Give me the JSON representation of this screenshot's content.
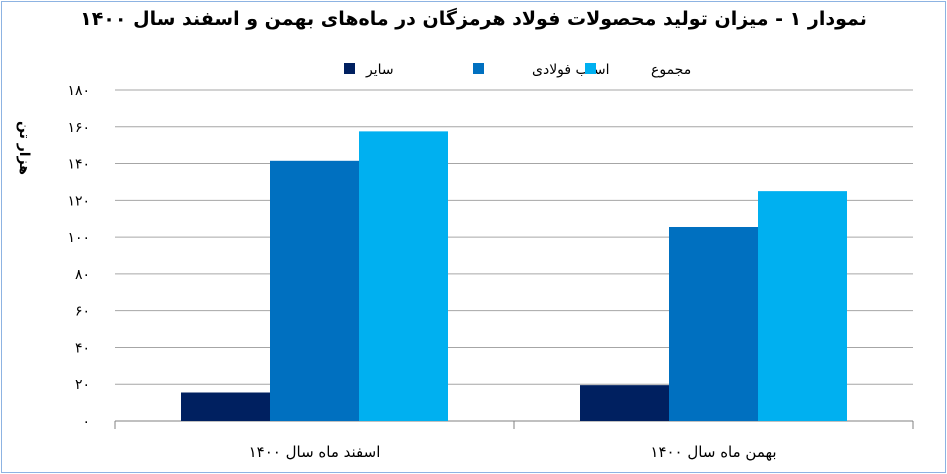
{
  "chart_data": {
    "type": "bar",
    "title": "نمودار ۱ - میزان تولید محصولات فولاد هرمزگان در ماه‌های بهمن و اسفند سال ۱۴۰۰",
    "ylabel": "هزار تن",
    "xlabel": "",
    "ylim": [
      0,
      180
    ],
    "yticks": [
      0,
      20,
      40,
      60,
      80,
      100,
      120,
      140,
      160,
      180
    ],
    "ytick_labels": [
      "۰",
      "۲۰",
      "۴۰",
      "۶۰",
      "۸۰",
      "۱۰۰",
      "۱۲۰",
      "۱۴۰",
      "۱۶۰",
      "۱۸۰"
    ],
    "categories": [
      "اسفند ماه سال ۱۴۰۰",
      "بهمن ماه سال ۱۴۰۰"
    ],
    "series": [
      {
        "name": "سایر",
        "values": [
          15.5,
          19.5
        ],
        "color": "#002060"
      },
      {
        "name": "اسلب فولادی",
        "values": [
          141.5,
          105.5
        ],
        "color": "#0070c0"
      },
      {
        "name": "مجموع",
        "values": [
          157.5,
          125
        ],
        "color": "#00b0f0"
      }
    ],
    "grid": true,
    "legend": "top-center"
  }
}
